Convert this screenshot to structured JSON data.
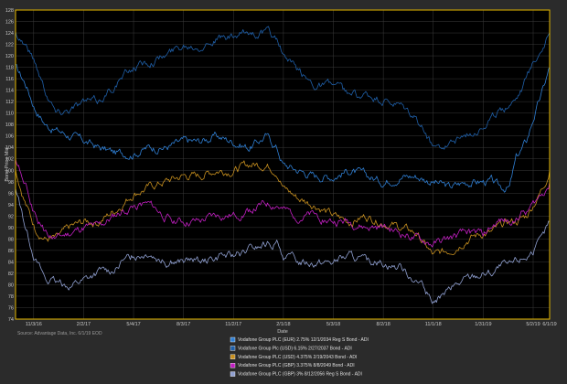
{
  "colors": {
    "background": "#2b2b2b",
    "plot_background": "#000000",
    "plot_border": "#e6b800",
    "grid": "#3a3a3a"
  },
  "source": "Source: Advantage Data, Inc. 6/1/19 EOD",
  "chart_data": {
    "type": "line",
    "title": "",
    "xlabel": "Date",
    "ylabel": "Bond Price Mid",
    "ylim": [
      74,
      128
    ],
    "yticks": [
      74,
      76,
      78,
      80,
      82,
      84,
      86,
      88,
      90,
      92,
      94,
      96,
      98,
      100,
      102,
      104,
      106,
      108,
      110,
      112,
      114,
      116,
      118,
      120,
      122,
      124,
      126,
      128
    ],
    "xlim": [
      "2016-10-01",
      "2019-06-01"
    ],
    "xticks": [
      {
        "date": "2016-11-03",
        "label": "11/3/16"
      },
      {
        "date": "2017-02-02",
        "label": "2/2/17"
      },
      {
        "date": "2017-05-04",
        "label": "5/4/17"
      },
      {
        "date": "2017-08-03",
        "label": "8/3/17"
      },
      {
        "date": "2017-11-02",
        "label": "11/2/17"
      },
      {
        "date": "2018-02-01",
        "label": "2/1/18"
      },
      {
        "date": "2018-05-03",
        "label": "5/3/18"
      },
      {
        "date": "2018-08-02",
        "label": "8/2/18"
      },
      {
        "date": "2018-11-01",
        "label": "11/1/18"
      },
      {
        "date": "2019-01-31",
        "label": "1/31/19"
      },
      {
        "date": "2019-05-02",
        "label": "5/2/19"
      },
      {
        "date": "2019-06-01",
        "label": "6/1/19"
      }
    ],
    "grid": true,
    "legend_position": "bottom-center",
    "series": [
      {
        "name": "Vodafone Group PLC (EUR) 2.75% 12/1/2034 Reg S Bond - ADI",
        "color": "#2f7fd4",
        "points": [
          [
            "2016-10-01",
            118
          ],
          [
            "2016-10-20",
            115
          ],
          [
            "2016-11-05",
            111
          ],
          [
            "2016-11-25",
            108
          ],
          [
            "2016-12-15",
            107
          ],
          [
            "2017-01-10",
            106
          ],
          [
            "2017-02-05",
            105
          ],
          [
            "2017-03-01",
            104
          ],
          [
            "2017-04-01",
            103
          ],
          [
            "2017-05-04",
            103
          ],
          [
            "2017-06-01",
            104
          ],
          [
            "2017-07-01",
            104
          ],
          [
            "2017-08-03",
            105
          ],
          [
            "2017-09-01",
            105
          ],
          [
            "2017-10-01",
            106
          ],
          [
            "2017-11-02",
            105
          ],
          [
            "2017-12-01",
            104
          ],
          [
            "2018-01-01",
            106
          ],
          [
            "2018-01-20",
            104
          ],
          [
            "2018-02-01",
            101
          ],
          [
            "2018-03-01",
            100
          ],
          [
            "2018-04-01",
            99
          ],
          [
            "2018-05-03",
            99
          ],
          [
            "2018-06-01",
            100
          ],
          [
            "2018-07-01",
            99
          ],
          [
            "2018-08-02",
            98
          ],
          [
            "2018-09-01",
            99
          ],
          [
            "2018-10-01",
            99
          ],
          [
            "2018-11-01",
            98
          ],
          [
            "2018-12-01",
            97
          ],
          [
            "2019-01-01",
            98
          ],
          [
            "2019-01-31",
            98
          ],
          [
            "2019-02-15",
            98
          ],
          [
            "2019-03-01",
            97
          ],
          [
            "2019-03-20",
            97
          ],
          [
            "2019-04-01",
            102
          ],
          [
            "2019-04-20",
            105
          ],
          [
            "2019-05-02",
            109
          ],
          [
            "2019-05-20",
            114
          ],
          [
            "2019-06-01",
            118
          ]
        ]
      },
      {
        "name": "Vodafone Group Plc (USD) 6.15% 2/27/2037 Bond - ADI",
        "color": "#1f5fa8",
        "points": [
          [
            "2016-10-01",
            124
          ],
          [
            "2016-10-20",
            122
          ],
          [
            "2016-11-05",
            119
          ],
          [
            "2016-11-25",
            114
          ],
          [
            "2016-12-15",
            110
          ],
          [
            "2017-01-10",
            111
          ],
          [
            "2017-02-05",
            112
          ],
          [
            "2017-03-01",
            112
          ],
          [
            "2017-04-01",
            115
          ],
          [
            "2017-05-04",
            118
          ],
          [
            "2017-06-01",
            119
          ],
          [
            "2017-07-01",
            120
          ],
          [
            "2017-08-03",
            122
          ],
          [
            "2017-09-01",
            122
          ],
          [
            "2017-10-01",
            123
          ],
          [
            "2017-11-02",
            123
          ],
          [
            "2017-12-01",
            124
          ],
          [
            "2018-01-01",
            124
          ],
          [
            "2018-01-20",
            123
          ],
          [
            "2018-02-01",
            120
          ],
          [
            "2018-03-01",
            117
          ],
          [
            "2018-04-01",
            115
          ],
          [
            "2018-05-03",
            115
          ],
          [
            "2018-06-01",
            113
          ],
          [
            "2018-07-01",
            113
          ],
          [
            "2018-08-02",
            112
          ],
          [
            "2018-09-01",
            111
          ],
          [
            "2018-10-01",
            109
          ],
          [
            "2018-11-01",
            104
          ],
          [
            "2018-12-01",
            105
          ],
          [
            "2019-01-01",
            106
          ],
          [
            "2019-01-31",
            108
          ],
          [
            "2019-02-15",
            109
          ],
          [
            "2019-03-01",
            110
          ],
          [
            "2019-03-20",
            112
          ],
          [
            "2019-04-01",
            113
          ],
          [
            "2019-04-20",
            116
          ],
          [
            "2019-05-02",
            119
          ],
          [
            "2019-05-20",
            122
          ],
          [
            "2019-06-01",
            124
          ]
        ]
      },
      {
        "name": "Vodafone Group PLC (USD) 4.375% 2/19/2043 Bond - ADI",
        "color": "#c8901f",
        "points": [
          [
            "2016-10-01",
            100
          ],
          [
            "2016-10-20",
            94
          ],
          [
            "2016-11-05",
            90
          ],
          [
            "2016-11-25",
            88
          ],
          [
            "2016-12-15",
            88
          ],
          [
            "2017-01-10",
            90
          ],
          [
            "2017-02-05",
            91
          ],
          [
            "2017-03-01",
            91
          ],
          [
            "2017-04-01",
            93
          ],
          [
            "2017-05-04",
            96
          ],
          [
            "2017-06-01",
            97
          ],
          [
            "2017-07-01",
            98
          ],
          [
            "2017-08-03",
            99
          ],
          [
            "2017-09-01",
            99
          ],
          [
            "2017-10-01",
            100
          ],
          [
            "2017-11-02",
            100
          ],
          [
            "2017-12-01",
            101
          ],
          [
            "2018-01-01",
            101
          ],
          [
            "2018-01-20",
            100
          ],
          [
            "2018-02-01",
            97
          ],
          [
            "2018-03-01",
            95
          ],
          [
            "2018-04-01",
            94
          ],
          [
            "2018-05-03",
            92
          ],
          [
            "2018-06-01",
            91
          ],
          [
            "2018-07-01",
            92
          ],
          [
            "2018-08-02",
            91
          ],
          [
            "2018-09-01",
            90
          ],
          [
            "2018-10-01",
            89
          ],
          [
            "2018-11-01",
            85
          ],
          [
            "2018-12-01",
            86
          ],
          [
            "2019-01-01",
            88
          ],
          [
            "2019-01-31",
            89
          ],
          [
            "2019-02-15",
            89
          ],
          [
            "2019-03-01",
            90
          ],
          [
            "2019-03-20",
            91
          ],
          [
            "2019-04-01",
            91
          ],
          [
            "2019-04-20",
            92
          ],
          [
            "2019-05-02",
            94
          ],
          [
            "2019-05-20",
            97
          ],
          [
            "2019-06-01",
            100
          ]
        ]
      },
      {
        "name": "Vodafone Group PLC (GBP) 3.375% 8/8/2049 Bond - ADI",
        "color": "#c21fc2",
        "points": [
          [
            "2016-10-01",
            102
          ],
          [
            "2016-10-20",
            97
          ],
          [
            "2016-11-05",
            92
          ],
          [
            "2016-11-25",
            89
          ],
          [
            "2016-12-15",
            88
          ],
          [
            "2017-01-10",
            89
          ],
          [
            "2017-02-05",
            90
          ],
          [
            "2017-03-01",
            90
          ],
          [
            "2017-04-01",
            92
          ],
          [
            "2017-05-04",
            94
          ],
          [
            "2017-06-01",
            94
          ],
          [
            "2017-07-01",
            92
          ],
          [
            "2017-08-03",
            91
          ],
          [
            "2017-09-01",
            91
          ],
          [
            "2017-10-01",
            92
          ],
          [
            "2017-11-02",
            92
          ],
          [
            "2017-12-01",
            93
          ],
          [
            "2018-01-01",
            94
          ],
          [
            "2018-01-20",
            94
          ],
          [
            "2018-02-01",
            93
          ],
          [
            "2018-03-01",
            92
          ],
          [
            "2018-04-01",
            92
          ],
          [
            "2018-05-03",
            91
          ],
          [
            "2018-06-01",
            91
          ],
          [
            "2018-07-01",
            90
          ],
          [
            "2018-08-02",
            90
          ],
          [
            "2018-09-01",
            89
          ],
          [
            "2018-10-01",
            88
          ],
          [
            "2018-11-01",
            87
          ],
          [
            "2018-12-01",
            88
          ],
          [
            "2019-01-01",
            89
          ],
          [
            "2019-01-31",
            89
          ],
          [
            "2019-02-15",
            90
          ],
          [
            "2019-03-01",
            91
          ],
          [
            "2019-03-20",
            91
          ],
          [
            "2019-04-01",
            92
          ],
          [
            "2019-04-20",
            93
          ],
          [
            "2019-05-02",
            94
          ],
          [
            "2019-05-20",
            96
          ],
          [
            "2019-06-01",
            98
          ]
        ]
      },
      {
        "name": "Vodafone Group PLC (GBP) 3% 8/12/2056 Reg S Bond - ADI",
        "color": "#8f9fd0",
        "points": [
          [
            "2016-10-01",
            97
          ],
          [
            "2016-10-20",
            90
          ],
          [
            "2016-11-05",
            85
          ],
          [
            "2016-11-25",
            81
          ],
          [
            "2016-12-15",
            80
          ],
          [
            "2017-01-10",
            80
          ],
          [
            "2017-02-05",
            81
          ],
          [
            "2017-03-01",
            82
          ],
          [
            "2017-04-01",
            83
          ],
          [
            "2017-05-04",
            85
          ],
          [
            "2017-06-01",
            86
          ],
          [
            "2017-07-01",
            84
          ],
          [
            "2017-08-03",
            84
          ],
          [
            "2017-09-01",
            84
          ],
          [
            "2017-10-01",
            85
          ],
          [
            "2017-11-02",
            85
          ],
          [
            "2017-12-01",
            86
          ],
          [
            "2018-01-01",
            87
          ],
          [
            "2018-01-20",
            87
          ],
          [
            "2018-02-01",
            85
          ],
          [
            "2018-03-01",
            84
          ],
          [
            "2018-04-01",
            84
          ],
          [
            "2018-05-03",
            84
          ],
          [
            "2018-06-01",
            85
          ],
          [
            "2018-07-01",
            84
          ],
          [
            "2018-08-02",
            84
          ],
          [
            "2018-09-01",
            83
          ],
          [
            "2018-10-01",
            81
          ],
          [
            "2018-11-01",
            77
          ],
          [
            "2018-12-01",
            79
          ],
          [
            "2019-01-01",
            81
          ],
          [
            "2019-01-31",
            82
          ],
          [
            "2019-02-15",
            82
          ],
          [
            "2019-03-01",
            83
          ],
          [
            "2019-03-20",
            83
          ],
          [
            "2019-04-01",
            84
          ],
          [
            "2019-04-20",
            85
          ],
          [
            "2019-05-02",
            86
          ],
          [
            "2019-05-20",
            88
          ],
          [
            "2019-06-01",
            91
          ]
        ]
      }
    ]
  }
}
